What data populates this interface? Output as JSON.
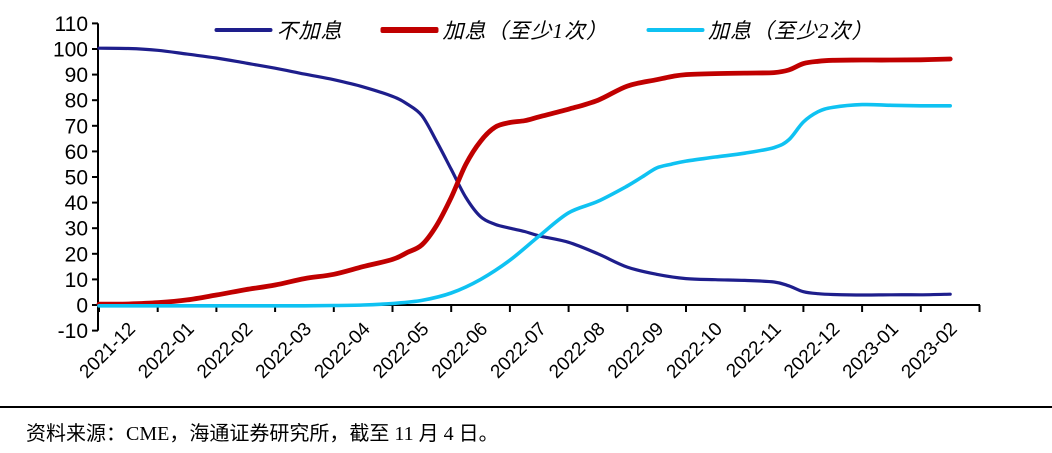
{
  "chart_data": {
    "type": "line",
    "title": "",
    "grid": false,
    "legend_position": "top",
    "x_axis": {
      "categories": [
        "2021-12",
        "2022-01",
        "2022-02",
        "2022-03",
        "2022-04",
        "2022-05",
        "2022-06",
        "2022-07",
        "2022-08",
        "2022-09",
        "2022-10",
        "2022-11",
        "2022-12",
        "2023-01",
        "2023-02"
      ],
      "label_rotation_deg": -45
    },
    "y_axis": {
      "min": -10,
      "max": 110,
      "step": 10,
      "ticks": [
        "110",
        "100",
        "90",
        "80",
        "70",
        "60",
        "50",
        "40",
        "30",
        "20",
        "10",
        "0",
        "-10"
      ]
    },
    "series": [
      {
        "id": "no-hike",
        "name": "不加息",
        "color": "#1E1E8C",
        "stroke_width": 3.2,
        "points_unit": "[months_from_2021-12, probability_percent]",
        "points": [
          [
            0,
            100.3
          ],
          [
            0.5,
            100.2
          ],
          [
            1,
            99.5
          ],
          [
            1.5,
            98
          ],
          [
            2,
            96.5
          ],
          [
            2.5,
            94.5
          ],
          [
            3,
            92.5
          ],
          [
            3.5,
            90.2
          ],
          [
            4,
            88
          ],
          [
            4.5,
            85.2
          ],
          [
            5,
            81.5
          ],
          [
            5.25,
            78.5
          ],
          [
            5.5,
            74
          ],
          [
            5.75,
            64
          ],
          [
            6,
            53
          ],
          [
            6.25,
            42
          ],
          [
            6.5,
            34.5
          ],
          [
            6.75,
            31.5
          ],
          [
            7,
            30
          ],
          [
            7.25,
            28.7
          ],
          [
            7.5,
            27
          ],
          [
            8,
            24.5
          ],
          [
            8.5,
            20
          ],
          [
            9,
            14.8
          ],
          [
            9.5,
            12
          ],
          [
            10,
            10.3
          ],
          [
            10.5,
            9.9
          ],
          [
            11,
            9.6
          ],
          [
            11.5,
            9
          ],
          [
            11.75,
            7.5
          ],
          [
            12,
            5.2
          ],
          [
            12.25,
            4.4
          ],
          [
            12.5,
            4.1
          ],
          [
            13,
            3.9
          ],
          [
            13.5,
            4
          ],
          [
            14,
            4
          ],
          [
            14.5,
            4.2
          ]
        ]
      },
      {
        "id": "hike-at-least-1",
        "name": "加息（至少1次）",
        "color": "#C00000",
        "stroke_width": 4.8,
        "points_unit": "[months_from_2021-12, probability_percent]",
        "points": [
          [
            0,
            0.3
          ],
          [
            0.5,
            0.4
          ],
          [
            1,
            0.9
          ],
          [
            1.5,
            2
          ],
          [
            2,
            3.9
          ],
          [
            2.5,
            6
          ],
          [
            3,
            7.8
          ],
          [
            3.5,
            10.3
          ],
          [
            4,
            12
          ],
          [
            4.5,
            15
          ],
          [
            5,
            17.8
          ],
          [
            5.25,
            20.5
          ],
          [
            5.5,
            23.5
          ],
          [
            5.75,
            31
          ],
          [
            6,
            42
          ],
          [
            6.25,
            55
          ],
          [
            6.5,
            64
          ],
          [
            6.75,
            69.5
          ],
          [
            7,
            71.3
          ],
          [
            7.25,
            72
          ],
          [
            7.5,
            73.5
          ],
          [
            8,
            76.5
          ],
          [
            8.5,
            80
          ],
          [
            9,
            85.5
          ],
          [
            9.5,
            88
          ],
          [
            9.75,
            89.2
          ],
          [
            10,
            90
          ],
          [
            10.5,
            90.4
          ],
          [
            11,
            90.6
          ],
          [
            11.5,
            90.8
          ],
          [
            11.75,
            91.8
          ],
          [
            12,
            94.3
          ],
          [
            12.25,
            95.2
          ],
          [
            12.5,
            95.6
          ],
          [
            13,
            95.7
          ],
          [
            13.5,
            95.7
          ],
          [
            14,
            95.8
          ],
          [
            14.5,
            96.1
          ]
        ]
      },
      {
        "id": "hike-at-least-2",
        "name": "加息（至少2次）",
        "color": "#0FC2F2",
        "stroke_width": 3.6,
        "points_unit": "[months_from_2021-12, probability_percent]",
        "points": [
          [
            0,
            -0.3
          ],
          [
            0.5,
            -0.3
          ],
          [
            1,
            -0.3
          ],
          [
            1.5,
            -0.3
          ],
          [
            2,
            -0.3
          ],
          [
            2.5,
            -0.3
          ],
          [
            3,
            -0.3
          ],
          [
            3.5,
            -0.3
          ],
          [
            4,
            -0.2
          ],
          [
            4.5,
            0
          ],
          [
            5,
            0.6
          ],
          [
            5.5,
            1.8
          ],
          [
            6,
            4.7
          ],
          [
            6.5,
            10
          ],
          [
            7,
            17.5
          ],
          [
            7.5,
            27
          ],
          [
            8,
            36
          ],
          [
            8.5,
            40.5
          ],
          [
            9,
            46.5
          ],
          [
            9.25,
            50
          ],
          [
            9.5,
            53.5
          ],
          [
            9.75,
            55
          ],
          [
            10,
            56.2
          ],
          [
            10.5,
            57.8
          ],
          [
            11,
            59.3
          ],
          [
            11.5,
            61.5
          ],
          [
            11.75,
            64.5
          ],
          [
            12,
            71.5
          ],
          [
            12.25,
            75.5
          ],
          [
            12.5,
            77.2
          ],
          [
            13,
            78.3
          ],
          [
            13.5,
            78
          ],
          [
            14,
            77.8
          ],
          [
            14.5,
            77.8
          ]
        ]
      }
    ]
  },
  "footer": {
    "source_note": "资料来源：CME，海通证券研究所，截至 11 月 4 日。"
  }
}
